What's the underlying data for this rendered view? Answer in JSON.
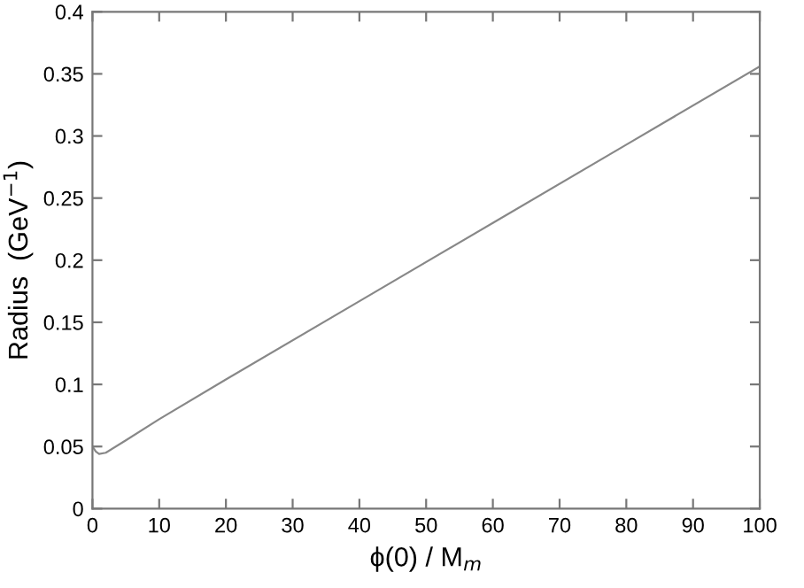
{
  "chart_data": {
    "type": "line",
    "xlabel": "ϕ(0) / M$_{m}$",
    "ylabel": "Radius  (GeV$^{−1}$)",
    "series": [
      {
        "color": "#888888",
        "x": [
          0,
          0.5,
          1,
          2,
          5,
          10,
          20,
          40,
          60,
          80,
          100
        ],
        "values": [
          0.05,
          0.046,
          0.044,
          0.045,
          0.055,
          0.072,
          0.104,
          0.167,
          0.23,
          0.293,
          0.356
        ]
      }
    ],
    "xlim": [
      0,
      100
    ],
    "ylim": [
      0,
      0.4
    ],
    "xticks": [
      0,
      10,
      20,
      30,
      40,
      50,
      60,
      70,
      80,
      90,
      100
    ],
    "yticks": [
      0,
      0.05,
      0.1,
      0.15,
      0.2,
      0.25,
      0.3,
      0.35,
      0.4
    ],
    "grid": false,
    "legend": false
  }
}
